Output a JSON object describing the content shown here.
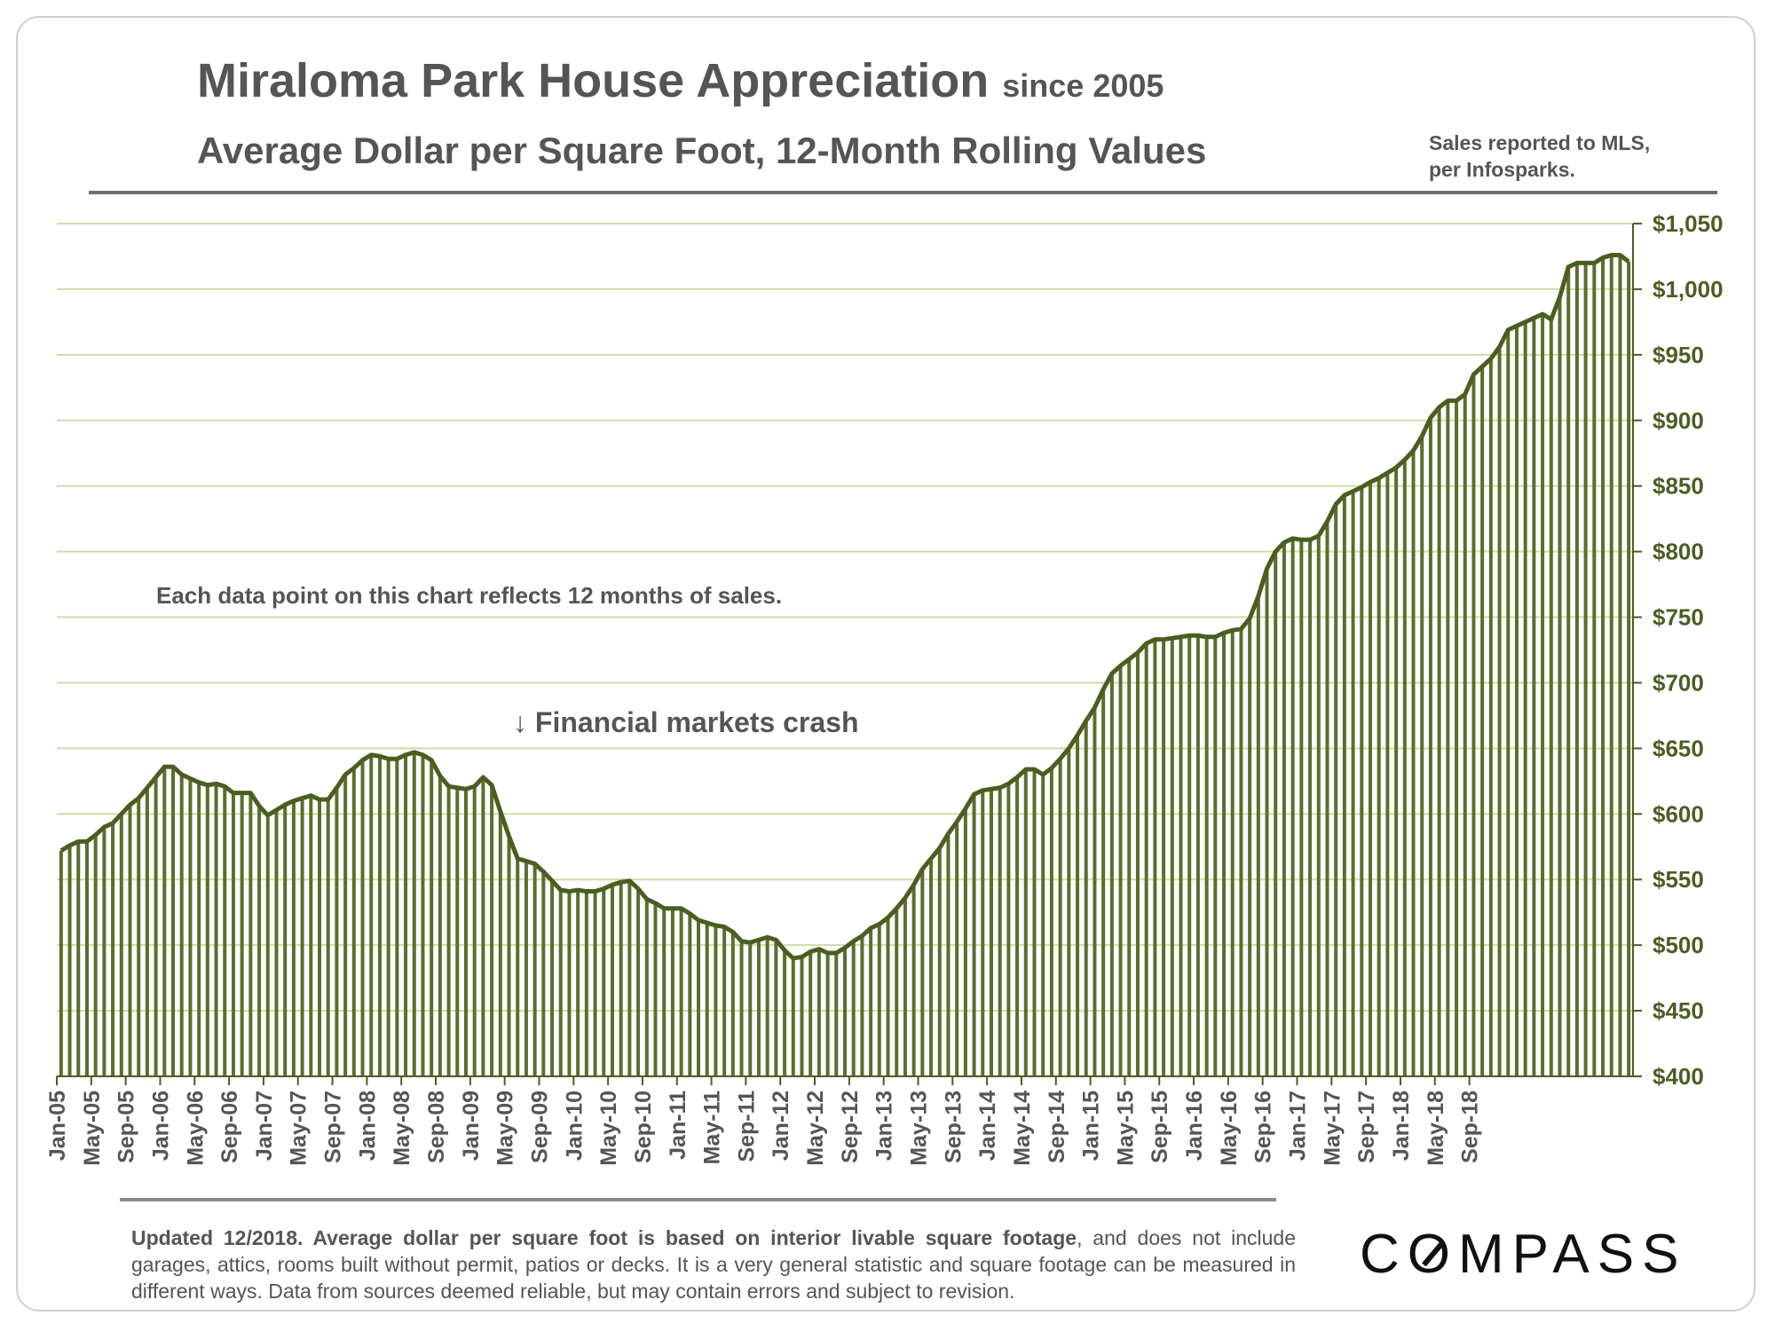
{
  "header": {
    "title": "Miraloma Park House Appreciation",
    "title_suffix": "since 2005",
    "subtitle": "Average Dollar per Square Foot, 12-Month Rolling Values",
    "source_line1": "Sales reported to MLS,",
    "source_line2": "per Infosparks."
  },
  "footer": {
    "note_bold": "Updated 12/2018. Average dollar per square foot is based on interior livable square footage",
    "note_rest": ", and does not include garages, attics, rooms built without permit, patios or decks. It is a very general statistic and square footage can be measured in different ways. Data from sources deemed reliable, but may contain errors and subject to revision.",
    "logo": "COMPASS"
  },
  "colors": {
    "bar": "#5a6f2a",
    "line": "#4b5e22",
    "grid": "#cfdba6",
    "tick": "#4b5e22",
    "text": "#555555"
  },
  "chart_data": {
    "type": "bar",
    "title": "Miraloma Park House Appreciation since 2005",
    "subtitle": "Average Dollar per Square Foot, 12-Month Rolling Values",
    "xlabel": "",
    "ylabel": "",
    "ylim": [
      400,
      1050
    ],
    "yticks": [
      400,
      450,
      500,
      550,
      600,
      650,
      700,
      750,
      800,
      850,
      900,
      950,
      1000,
      1050
    ],
    "ytick_labels": [
      "$400",
      "$450",
      "$500",
      "$550",
      "$600",
      "$650",
      "$700",
      "$750",
      "$800",
      "$850",
      "$900",
      "$950",
      "$1,000",
      "$1,050"
    ],
    "xtick_labels": [
      "Jan-05",
      "May-05",
      "Sep-05",
      "Jan-06",
      "May-06",
      "Sep-06",
      "Jan-07",
      "May-07",
      "Sep-07",
      "Jan-08",
      "May-08",
      "Sep-08",
      "Jan-09",
      "May-09",
      "Sep-09",
      "Jan-10",
      "May-10",
      "Sep-10",
      "Jan-11",
      "May-11",
      "Sep-11",
      "Jan-12",
      "May-12",
      "Sep-12",
      "Jan-13",
      "May-13",
      "Sep-13",
      "Jan-14",
      "May-14",
      "Sep-14",
      "Jan-15",
      "May-15",
      "Sep-15",
      "Jan-16",
      "May-16",
      "Sep-16",
      "Jan-17",
      "May-17",
      "Sep-17",
      "Jan-18",
      "May-18",
      "Sep-18"
    ],
    "start_month": "Jan-05",
    "values": [
      572,
      576,
      579,
      579,
      584,
      590,
      593,
      600,
      607,
      612,
      620,
      628,
      636,
      636,
      630,
      627,
      624,
      622,
      623,
      621,
      616,
      616,
      616,
      606,
      599,
      603,
      607,
      610,
      612,
      614,
      611,
      611,
      620,
      630,
      635,
      641,
      645,
      644,
      642,
      642,
      645,
      647,
      645,
      641,
      629,
      621,
      620,
      619,
      621,
      628,
      622,
      602,
      583,
      566,
      564,
      562,
      556,
      549,
      542,
      541,
      542,
      541,
      541,
      543,
      546,
      548,
      549,
      543,
      535,
      532,
      528,
      528,
      528,
      524,
      519,
      517,
      515,
      514,
      510,
      503,
      502,
      504,
      506,
      504,
      496,
      490,
      491,
      495,
      497,
      494,
      494,
      498,
      503,
      507,
      513,
      516,
      521,
      528,
      536,
      546,
      558,
      566,
      574,
      585,
      594,
      604,
      615,
      618,
      619,
      620,
      623,
      628,
      634,
      634,
      630,
      635,
      642,
      650,
      660,
      671,
      681,
      695,
      707,
      713,
      718,
      723,
      730,
      733,
      733,
      734,
      735,
      736,
      736,
      735,
      735,
      738,
      740,
      741,
      749,
      766,
      787,
      800,
      807,
      810,
      809,
      809,
      812,
      823,
      836,
      843,
      846,
      849,
      853,
      856,
      860,
      864,
      870,
      877,
      888,
      902,
      910,
      915,
      915,
      920,
      935,
      941,
      947,
      956,
      969,
      972,
      975,
      978,
      981,
      977,
      994,
      1017,
      1020,
      1020,
      1020,
      1024,
      1026,
      1026,
      1021
    ],
    "annotations": [
      "Each data point on this chart reflects 12 months of sales.",
      "↓ Financial markets crash"
    ]
  }
}
